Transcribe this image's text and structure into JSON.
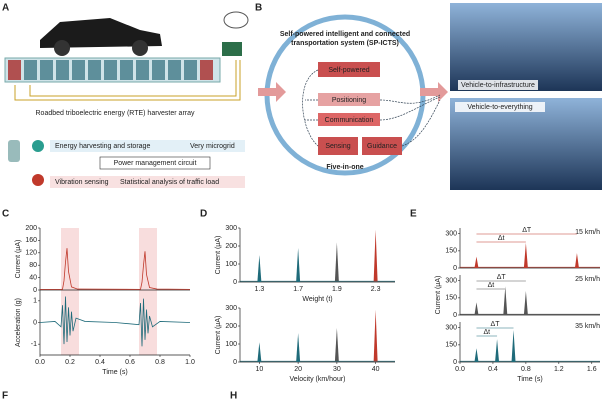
{
  "panel_letters": [
    "A",
    "B",
    "C",
    "D",
    "E",
    "F",
    "H"
  ],
  "panel_a": {
    "array_label": "Roadbed triboelectric energy (RTE) harvester array",
    "flow": [
      "Energy harvesting and storage",
      "Very microgrid",
      "Power management circuit",
      "Vibration sensing",
      "Statistical analysis of traffic load"
    ]
  },
  "panel_b": {
    "title_lines": [
      "Self-powered intelligent and connected",
      "transportation system (SP-ICTS)"
    ],
    "functions": [
      "Self-powered",
      "Positioning",
      "Communication",
      "Sensing",
      "Guidance"
    ],
    "caption": "Five-in-one",
    "photos": [
      "Vehicle-to-infrastructure",
      "Vehicle-to-everything"
    ]
  },
  "chart_data": [
    {
      "type": "line",
      "ylabel": "Current (µA)",
      "color": "#c0392b",
      "xlim": [
        0,
        1
      ],
      "ylim": [
        0,
        200
      ],
      "yticks": [
        0,
        40,
        80,
        120,
        160,
        200
      ],
      "highlight_x": [
        [
          0.14,
          0.26
        ],
        [
          0.66,
          0.78
        ]
      ],
      "x": [
        0,
        0.15,
        0.16,
        0.17,
        0.18,
        0.19,
        0.21,
        0.25,
        0.67,
        0.68,
        0.69,
        0.7,
        0.71,
        0.73,
        0.78,
        1.0
      ],
      "values": [
        2,
        2,
        30,
        90,
        135,
        60,
        10,
        3,
        2,
        25,
        80,
        125,
        50,
        8,
        3,
        2
      ]
    },
    {
      "type": "line",
      "ylabel": "Acceleration (g)",
      "xlabel": "Time (s)",
      "color": "#1f6b7a",
      "xlim": [
        0,
        1
      ],
      "ylim": [
        -1.5,
        1.5
      ],
      "yticks": [
        -1,
        0,
        1
      ],
      "xticks": [
        {
          "value": 0,
          "label": "0.0"
        },
        0.2,
        0.4,
        0.6,
        0.8,
        {
          "value": 1,
          "label": "1.0"
        }
      ],
      "x": [
        0,
        0.1,
        0.14,
        0.15,
        0.16,
        0.17,
        0.18,
        0.19,
        0.2,
        0.21,
        0.22,
        0.24,
        0.3,
        0.5,
        0.66,
        0.67,
        0.68,
        0.69,
        0.7,
        0.71,
        0.72,
        0.73,
        0.75,
        0.8,
        1.0
      ],
      "values": [
        0,
        0.05,
        -0.2,
        0.8,
        -1,
        1.2,
        -0.9,
        0.7,
        -0.6,
        0.5,
        -0.4,
        0.2,
        0.05,
        0,
        -0.1,
        0.9,
        -1.1,
        1.1,
        -0.8,
        0.6,
        -0.5,
        0.3,
        -0.2,
        0.05,
        0
      ]
    },
    {
      "type": "spike",
      "ylabel": "Current (µA)",
      "xlabel": "Weight (t)",
      "categories": [
        "1.3",
        "1.7",
        "1.9",
        "2.3"
      ],
      "values": [
        150,
        190,
        220,
        290
      ],
      "colors": [
        "#1f6b7a",
        "#1f6b7a",
        "#555555",
        "#c0392b"
      ],
      "ylim": [
        0,
        300
      ],
      "yticks": [
        0,
        100,
        200,
        300
      ]
    },
    {
      "type": "spike",
      "ylabel": "Current (µA)",
      "xlabel": "Velocity (km/hour)",
      "x": [
        10,
        20,
        30,
        40
      ],
      "values": [
        110,
        160,
        190,
        290
      ],
      "colors": [
        "#1f6b7a",
        "#1f6b7a",
        "#555555",
        "#c0392b"
      ],
      "xlim": [
        5,
        45
      ],
      "xticks": [
        10,
        20,
        30,
        40
      ],
      "ylim": [
        0,
        300
      ],
      "yticks": [
        0,
        100,
        200,
        300
      ]
    },
    {
      "type": "spike",
      "speed": "15 km/h",
      "annotations": [
        "ΔT",
        "Δt"
      ],
      "color": "#c0392b",
      "x": [
        0.2,
        0.8,
        1.42
      ],
      "values": [
        100,
        220,
        130
      ],
      "xlim": [
        0,
        1.7
      ],
      "ylim": [
        0,
        350
      ],
      "yticks": [
        0,
        150,
        300
      ]
    },
    {
      "type": "spike",
      "speed": "25 km/h",
      "annotations": [
        "ΔT",
        "Δt"
      ],
      "ylabel": "Current (µA)",
      "color": "#555555",
      "x": [
        0.2,
        0.55,
        0.8
      ],
      "values": [
        110,
        250,
        210
      ],
      "xlim": [
        0,
        1.7
      ],
      "ylim": [
        0,
        350
      ],
      "yticks": [
        0,
        150,
        300
      ]
    },
    {
      "type": "spike",
      "speed": "35 km/h",
      "annotations": [
        "ΔT",
        "Δt"
      ],
      "xlabel": "Time (s)",
      "color": "#1f6b7a",
      "x": [
        0.2,
        0.45,
        0.65
      ],
      "values": [
        120,
        200,
        280
      ],
      "xlim": [
        0,
        1.7
      ],
      "ylim": [
        0,
        350
      ],
      "yticks": [
        0,
        150,
        300
      ],
      "xticks": [
        {
          "value": 0,
          "label": "0.0"
        },
        0.4,
        0.8,
        1.2,
        1.6
      ]
    }
  ]
}
